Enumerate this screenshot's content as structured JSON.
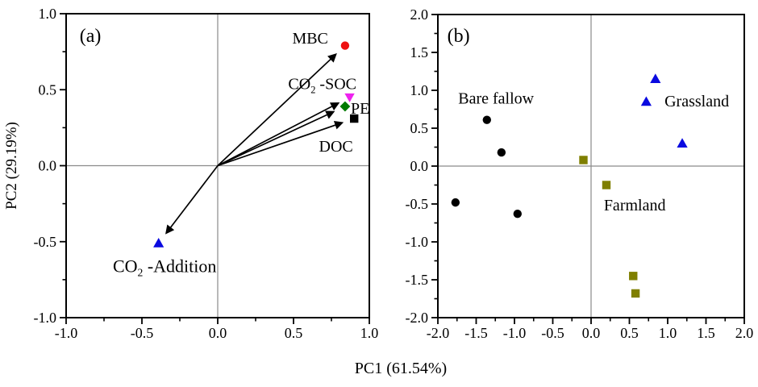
{
  "figure": {
    "background": "#ffffff",
    "frame_color": "#000000",
    "zero_line_color": "#8a8a8a",
    "arrow_color": "#000000",
    "shared_xlabel": "PC1 (61.54%)"
  },
  "chart_data": [
    {
      "id": "a",
      "type": "scatter",
      "panel_label": "(a)",
      "ylabel": "PC2 (29.19%)",
      "xlabel": "",
      "xlim": [
        -1.0,
        1.0
      ],
      "ylim": [
        -1.0,
        1.0
      ],
      "x_ticks": [
        -1.0,
        -0.5,
        0.0,
        0.5,
        1.0
      ],
      "y_ticks": [
        -1.0,
        -0.5,
        0.0,
        0.5,
        1.0
      ],
      "minor_step": 0.25,
      "tick_decimals": 1,
      "grid": false,
      "zero_lines": true,
      "loadings": [
        {
          "name": "MBC",
          "x": 0.84,
          "y": 0.79,
          "marker": "circle",
          "color": "#ee1111"
        },
        {
          "name": "CO2-SOC",
          "x": 0.87,
          "y": 0.45,
          "marker": "triangle-down",
          "color": "#ee22ee"
        },
        {
          "name": "PE",
          "x": 0.84,
          "y": 0.39,
          "marker": "diamond",
          "color": "#007a00"
        },
        {
          "name": "DOC",
          "x": 0.9,
          "y": 0.31,
          "marker": "square",
          "color": "#000000"
        },
        {
          "name": "CO2-Addition",
          "x": -0.39,
          "y": -0.51,
          "marker": "triangle-up",
          "color": "#0a0ae0"
        }
      ],
      "annotations": [
        {
          "name": "panel-label-a",
          "segments": [
            {
              "text": "(a)"
            }
          ],
          "x": -0.84,
          "y": 0.86,
          "size": 24
        },
        {
          "name": "label-mbc",
          "segments": [
            {
              "text": "MBC"
            }
          ],
          "x": 0.61,
          "y": 0.84,
          "size": 20
        },
        {
          "name": "label-co2-soc",
          "segments": [
            {
              "text": "CO"
            },
            {
              "text": "2",
              "sub": true
            },
            {
              "text": " -SOC"
            }
          ],
          "x": 0.69,
          "y": 0.54,
          "size": 20
        },
        {
          "name": "label-pe",
          "segments": [
            {
              "text": "PE"
            }
          ],
          "x": 0.94,
          "y": 0.38,
          "size": 20
        },
        {
          "name": "label-doc",
          "segments": [
            {
              "text": "DOC"
            }
          ],
          "x": 0.78,
          "y": 0.13,
          "size": 20
        },
        {
          "name": "label-co2-addition",
          "segments": [
            {
              "text": "CO"
            },
            {
              "text": "2",
              "sub": true
            },
            {
              "text": " -Addition"
            }
          ],
          "x": -0.35,
          "y": -0.66,
          "size": 22
        }
      ]
    },
    {
      "id": "b",
      "type": "scatter",
      "panel_label": "(b)",
      "ylabel": "",
      "xlabel": "",
      "xlim": [
        -2.0,
        2.0
      ],
      "ylim": [
        -2.0,
        2.0
      ],
      "x_ticks": [
        -2.0,
        -1.5,
        -1.0,
        -0.5,
        0.0,
        0.5,
        1.0,
        1.5,
        2.0
      ],
      "y_ticks": [
        -2.0,
        -1.5,
        -1.0,
        -0.5,
        0.0,
        0.5,
        1.0,
        1.5,
        2.0
      ],
      "minor_step": 0.25,
      "tick_decimals": 1,
      "grid": false,
      "zero_lines": true,
      "series": [
        {
          "name": "Bare fallow",
          "marker": "circle",
          "color": "#000000",
          "points": [
            [
              -1.36,
              0.61
            ],
            [
              -1.17,
              0.18
            ],
            [
              -1.77,
              -0.48
            ],
            [
              -0.96,
              -0.63
            ]
          ]
        },
        {
          "name": "Farmland",
          "marker": "square",
          "color": "#7f7f00",
          "points": [
            [
              -0.1,
              0.08
            ],
            [
              0.2,
              -0.25
            ],
            [
              0.55,
              -1.45
            ],
            [
              0.58,
              -1.68
            ]
          ]
        },
        {
          "name": "Grassland",
          "marker": "triangle-up",
          "color": "#0a0ae0",
          "points": [
            [
              0.84,
              1.15
            ],
            [
              0.72,
              0.85
            ],
            [
              1.19,
              0.3
            ]
          ]
        }
      ],
      "annotations": [
        {
          "name": "panel-label-b",
          "segments": [
            {
              "text": "(b)"
            }
          ],
          "x": -1.73,
          "y": 1.73,
          "size": 24
        },
        {
          "name": "label-bare-fallow",
          "segments": [
            {
              "text": "Bare fallow"
            }
          ],
          "x": -1.24,
          "y": 0.9,
          "size": 20
        },
        {
          "name": "label-grassland",
          "segments": [
            {
              "text": "Grassland"
            }
          ],
          "x": 1.38,
          "y": 0.86,
          "size": 20
        },
        {
          "name": "label-farmland",
          "segments": [
            {
              "text": "Farmland"
            }
          ],
          "x": 0.57,
          "y": -0.51,
          "size": 20
        }
      ]
    }
  ]
}
